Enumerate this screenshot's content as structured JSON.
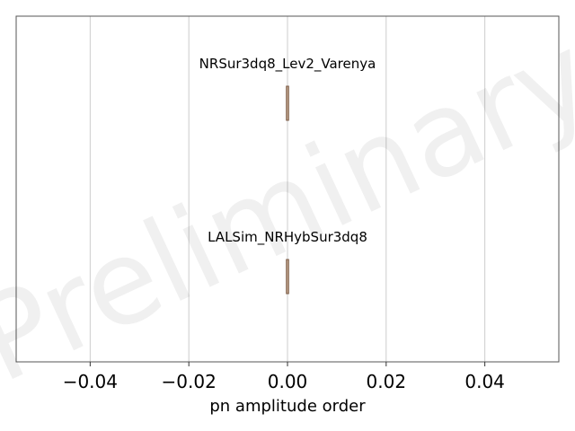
{
  "chart_data": {
    "type": "box",
    "xlabel": "pn amplitude order",
    "ylabel": "",
    "xlim": [
      -0.055,
      0.055
    ],
    "xticks": [
      -0.04,
      -0.02,
      0.0,
      0.02,
      0.04
    ],
    "xtick_labels": [
      "−0.04",
      "−0.02",
      "0.00",
      "0.02",
      "0.04"
    ],
    "grid": "vertical",
    "series": [
      {
        "name": "NRSur3dq8_Lev2_Varenya",
        "values": [
          0,
          0,
          0,
          0,
          0
        ],
        "color": "#b08a6a"
      },
      {
        "name": "LALSim_NRHybSur3dq8",
        "values": [
          0,
          0,
          0,
          0,
          0
        ],
        "color": "#b08a6a"
      }
    ],
    "watermark": "Preliminary"
  }
}
